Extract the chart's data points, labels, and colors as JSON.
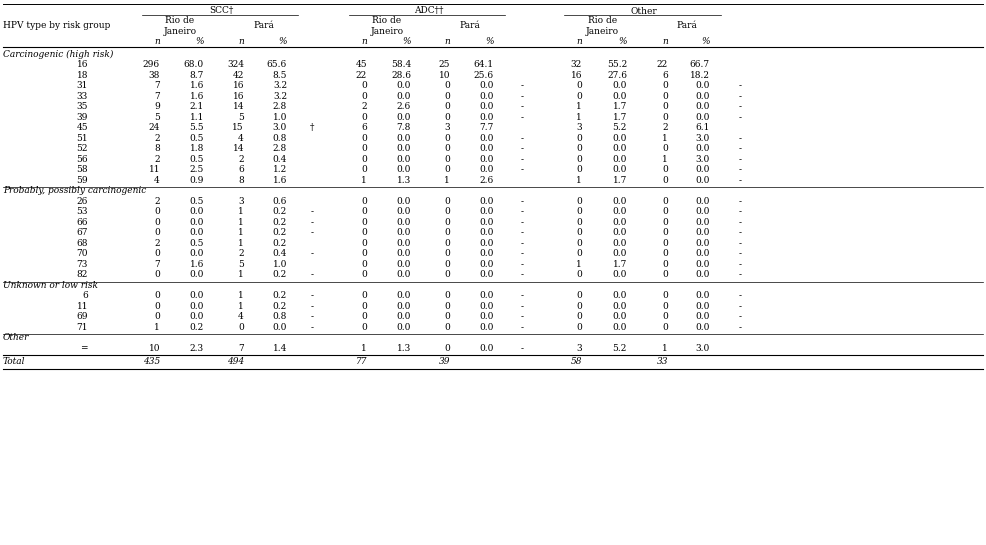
{
  "sections": [
    {
      "header": "Carcinogenic (high risk)",
      "hpv_labels": [
        "",
        "16",
        "18",
        "31",
        "33",
        "35",
        "39",
        "45",
        "51",
        "52",
        "56",
        "58",
        "59"
      ],
      "rows": [
        [
          "296",
          "68.0",
          "324",
          "65.6",
          "",
          "45",
          "58.4",
          "25",
          "64.1",
          "",
          "32",
          "55.2",
          "22",
          "66.7",
          ""
        ],
        [
          "38",
          "8.7",
          "42",
          "8.5",
          "",
          "22",
          "28.6",
          "10",
          "25.6",
          "",
          "16",
          "27.6",
          "6",
          "18.2",
          ""
        ],
        [
          "7",
          "1.6",
          "16",
          "3.2",
          "",
          "0",
          "0.0",
          "0",
          "0.0",
          "-",
          "0",
          "0.0",
          "0",
          "0.0",
          "-"
        ],
        [
          "7",
          "1.6",
          "16",
          "3.2",
          "",
          "0",
          "0.0",
          "0",
          "0.0",
          "-",
          "0",
          "0.0",
          "0",
          "0.0",
          "-"
        ],
        [
          "9",
          "2.1",
          "14",
          "2.8",
          "",
          "2",
          "2.6",
          "0",
          "0.0",
          "-",
          "1",
          "1.7",
          "0",
          "0.0",
          "-"
        ],
        [
          "5",
          "1.1",
          "5",
          "1.0",
          "",
          "0",
          "0.0",
          "0",
          "0.0",
          "-",
          "1",
          "1.7",
          "0",
          "0.0",
          "-"
        ],
        [
          "24",
          "5.5",
          "15",
          "3.0",
          "†",
          "6",
          "7.8",
          "3",
          "7.7",
          "",
          "3",
          "5.2",
          "2",
          "6.1",
          ""
        ],
        [
          "2",
          "0.5",
          "4",
          "0.8",
          "",
          "0",
          "0.0",
          "0",
          "0.0",
          "-",
          "0",
          "0.0",
          "1",
          "3.0",
          "-"
        ],
        [
          "8",
          "1.8",
          "14",
          "2.8",
          "",
          "0",
          "0.0",
          "0",
          "0.0",
          "-",
          "0",
          "0.0",
          "0",
          "0.0",
          "-"
        ],
        [
          "2",
          "0.5",
          "2",
          "0.4",
          "",
          "0",
          "0.0",
          "0",
          "0.0",
          "-",
          "0",
          "0.0",
          "1",
          "3.0",
          "-"
        ],
        [
          "11",
          "2.5",
          "6",
          "1.2",
          "",
          "0",
          "0.0",
          "0",
          "0.0",
          "-",
          "0",
          "0.0",
          "0",
          "0.0",
          "-"
        ],
        [
          "4",
          "0.9",
          "8",
          "1.6",
          "",
          "1",
          "1.3",
          "1",
          "2.6",
          "",
          "1",
          "1.7",
          "0",
          "0.0",
          "-"
        ]
      ]
    },
    {
      "header": "Probably, possibly carcinogenic",
      "hpv_labels": [
        "",
        "26",
        "53",
        "66",
        "67",
        "68",
        "70",
        "73",
        "82"
      ],
      "rows": [
        [
          "2",
          "0.5",
          "3",
          "0.6",
          "",
          "0",
          "0.0",
          "0",
          "0.0",
          "-",
          "0",
          "0.0",
          "0",
          "0.0",
          "-"
        ],
        [
          "0",
          "0.0",
          "1",
          "0.2",
          "-",
          "0",
          "0.0",
          "0",
          "0.0",
          "-",
          "0",
          "0.0",
          "0",
          "0.0",
          "-"
        ],
        [
          "0",
          "0.0",
          "1",
          "0.2",
          "-",
          "0",
          "0.0",
          "0",
          "0.0",
          "-",
          "0",
          "0.0",
          "0",
          "0.0",
          "-"
        ],
        [
          "0",
          "0.0",
          "1",
          "0.2",
          "-",
          "0",
          "0.0",
          "0",
          "0.0",
          "-",
          "0",
          "0.0",
          "0",
          "0.0",
          "-"
        ],
        [
          "2",
          "0.5",
          "1",
          "0.2",
          "",
          "0",
          "0.0",
          "0",
          "0.0",
          "-",
          "0",
          "0.0",
          "0",
          "0.0",
          "-"
        ],
        [
          "0",
          "0.0",
          "2",
          "0.4",
          "-",
          "0",
          "0.0",
          "0",
          "0.0",
          "-",
          "0",
          "0.0",
          "0",
          "0.0",
          "-"
        ],
        [
          "7",
          "1.6",
          "5",
          "1.0",
          "",
          "0",
          "0.0",
          "0",
          "0.0",
          "-",
          "1",
          "1.7",
          "0",
          "0.0",
          "-"
        ],
        [
          "0",
          "0.0",
          "1",
          "0.2",
          "-",
          "0",
          "0.0",
          "0",
          "0.0",
          "-",
          "0",
          "0.0",
          "0",
          "0.0",
          "-"
        ]
      ]
    },
    {
      "header": "Unknown or low risk",
      "hpv_labels": [
        "",
        "6",
        "11",
        "69",
        "71"
      ],
      "rows": [
        [
          "0",
          "0.0",
          "1",
          "0.2",
          "-",
          "0",
          "0.0",
          "0",
          "0.0",
          "-",
          "0",
          "0.0",
          "0",
          "0.0",
          "-"
        ],
        [
          "0",
          "0.0",
          "1",
          "0.2",
          "-",
          "0",
          "0.0",
          "0",
          "0.0",
          "-",
          "0",
          "0.0",
          "0",
          "0.0",
          "-"
        ],
        [
          "0",
          "0.0",
          "4",
          "0.8",
          "-",
          "0",
          "0.0",
          "0",
          "0.0",
          "-",
          "0",
          "0.0",
          "0",
          "0.0",
          "-"
        ],
        [
          "1",
          "0.2",
          "0",
          "0.0",
          "-",
          "0",
          "0.0",
          "0",
          "0.0",
          "-",
          "0",
          "0.0",
          "0",
          "0.0",
          "-"
        ]
      ]
    },
    {
      "header": "Other",
      "hpv_labels": [
        "",
        "="
      ],
      "rows": [
        [
          "10",
          "2.3",
          "7",
          "1.4",
          "",
          "1",
          "1.3",
          "0",
          "0.0",
          "-",
          "3",
          "5.2",
          "1",
          "3.0",
          ""
        ]
      ]
    }
  ],
  "total_row": [
    "435",
    "",
    "494",
    "",
    "",
    "77",
    "",
    "39",
    "",
    "",
    "58",
    "",
    "33",
    "",
    ""
  ],
  "bg_color": "#ffffff",
  "text_color": "#000000",
  "fs": 6.5
}
